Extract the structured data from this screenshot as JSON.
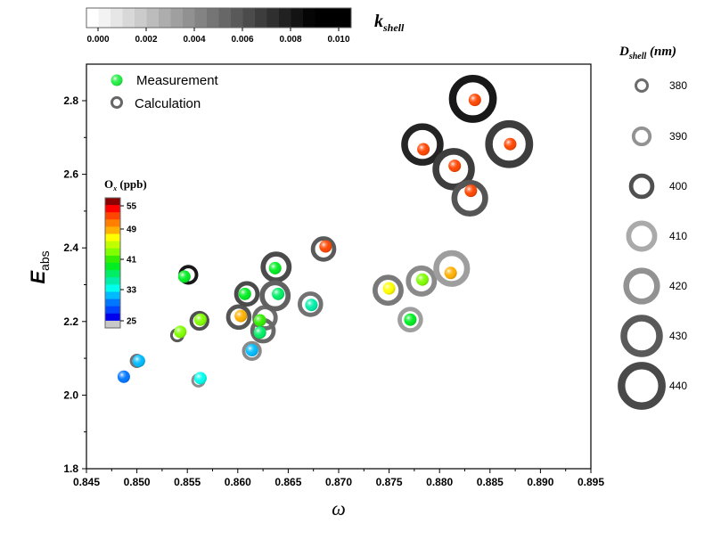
{
  "chart_data": {
    "type": "scatter",
    "title": "",
    "xlabel": "ω",
    "ylabel": "E",
    "ylabel_sub": "abs",
    "xlim": [
      0.845,
      0.895
    ],
    "ylim": [
      1.8,
      2.9
    ],
    "xticks": [
      "0.845",
      "0.850",
      "0.855",
      "0.860",
      "0.865",
      "0.870",
      "0.875",
      "0.880",
      "0.885",
      "0.890",
      "0.895"
    ],
    "yticks": [
      "1.8",
      "2.0",
      "2.2",
      "2.4",
      "2.6",
      "2.8"
    ],
    "grid": false,
    "legend": {
      "placement": "top-left",
      "entries": [
        {
          "label": "Measurement",
          "marker": "filled-sphere",
          "color": "#22ee44"
        },
        {
          "label": "Calculation",
          "marker": "ring",
          "color": "#666666"
        }
      ]
    },
    "kshell_colorbar": {
      "label": "k",
      "label_sub": "shell",
      "range": [
        0.0,
        0.0105
      ],
      "ticks": [
        "0.000",
        "0.002",
        "0.004",
        "0.006",
        "0.008",
        "0.010"
      ],
      "colors": [
        "#ffffff",
        "#f3f3f3",
        "#e6e6e6",
        "#d8d8d8",
        "#cbcbcb",
        "#bcbcbc",
        "#adadad",
        "#9f9f9f",
        "#919191",
        "#838383",
        "#757575",
        "#676767",
        "#595959",
        "#4b4b4b",
        "#3d3d3d",
        "#2f2f2f",
        "#212121",
        "#131313",
        "#050505",
        "#000000",
        "#000000",
        "#000000"
      ]
    },
    "ox_colorbar": {
      "label": "O",
      "label_sub": "x",
      "label_unit": " (ppb)",
      "ticks": [
        "55",
        "49",
        "41",
        "33",
        "25"
      ],
      "tick_values": [
        55,
        49,
        41,
        33,
        25
      ],
      "range": [
        23,
        57
      ],
      "colors_top_to_bottom": [
        "#8b0000",
        "#ff0000",
        "#ff4500",
        "#ff7f00",
        "#ffb000",
        "#ffff00",
        "#bfff00",
        "#80ff00",
        "#33ee00",
        "#00ee22",
        "#00ee66",
        "#00eeaa",
        "#00ffee",
        "#00bbff",
        "#0077ff",
        "#0044ff",
        "#0000ee",
        "#c8c8c8"
      ]
    },
    "dshell_legend": {
      "title": "D",
      "title_sub": "shell",
      "title_unit": " (nm)",
      "sizes": [
        380,
        390,
        400,
        410,
        420,
        430,
        440
      ],
      "kshell": [
        0.006,
        0.0045,
        0.0072,
        0.0035,
        0.0045,
        0.0068,
        0.0075
      ]
    },
    "points": [
      {
        "omega": 0.8487,
        "Eabs": 2.05,
        "ox": 28,
        "calc": null
      },
      {
        "omega": 0.8502,
        "Eabs": 2.093,
        "ox": 31,
        "calc": {
          "omega": 0.85,
          "Eabs": 2.093,
          "dshell": 380,
          "kshell": 0.0058
        }
      },
      {
        "omega": 0.8547,
        "Eabs": 2.322,
        "ox": 38,
        "calc": {
          "omega": 0.8551,
          "Eabs": 2.327,
          "dshell": 390,
          "kshell": 0.0095
        }
      },
      {
        "omega": 0.8543,
        "Eabs": 2.172,
        "ox": 42,
        "calc": {
          "omega": 0.854,
          "Eabs": 2.163,
          "dshell": 380,
          "kshell": 0.0068
        }
      },
      {
        "omega": 0.8563,
        "Eabs": 2.046,
        "ox": 33,
        "calc": {
          "omega": 0.8561,
          "Eabs": 2.04,
          "dshell": 380,
          "kshell": 0.0047
        }
      },
      {
        "omega": 0.8563,
        "Eabs": 2.205,
        "ox": 42,
        "calc": {
          "omega": 0.8562,
          "Eabs": 2.202,
          "dshell": 390,
          "kshell": 0.0072
        }
      },
      {
        "omega": 0.8603,
        "Eabs": 2.215,
        "ox": 49,
        "calc": {
          "omega": 0.8601,
          "Eabs": 2.212,
          "dshell": 400,
          "kshell": 0.007
        }
      },
      {
        "omega": 0.8607,
        "Eabs": 2.275,
        "ox": 39,
        "calc": {
          "omega": 0.8609,
          "Eabs": 2.275,
          "dshell": 400,
          "kshell": 0.0074
        }
      },
      {
        "omega": 0.8614,
        "Eabs": 2.122,
        "ox": 31,
        "calc": {
          "omega": 0.8614,
          "Eabs": 2.12,
          "dshell": 390,
          "kshell": 0.0048
        }
      },
      {
        "omega": 0.8622,
        "Eabs": 2.203,
        "ox": 40,
        "calc": {
          "omega": 0.8627,
          "Eabs": 2.21,
          "dshell": 400,
          "kshell": 0.006
        }
      },
      {
        "omega": 0.8622,
        "Eabs": 2.17,
        "ox": 36,
        "calc": {
          "omega": 0.8625,
          "Eabs": 2.175,
          "dshell": 400,
          "kshell": 0.0062
        }
      },
      {
        "omega": 0.8637,
        "Eabs": 2.345,
        "ox": 39,
        "calc": {
          "omega": 0.8638,
          "Eabs": 2.348,
          "dshell": 410,
          "kshell": 0.0074
        }
      },
      {
        "omega": 0.864,
        "Eabs": 2.275,
        "ox": 37,
        "calc": {
          "omega": 0.8637,
          "Eabs": 2.27,
          "dshell": 410,
          "kshell": 0.0065
        }
      },
      {
        "omega": 0.8673,
        "Eabs": 2.245,
        "ox": 35,
        "calc": {
          "omega": 0.8672,
          "Eabs": 2.247,
          "dshell": 400,
          "kshell": 0.0058
        }
      },
      {
        "omega": 0.8687,
        "Eabs": 2.404,
        "ox": 53,
        "calc": {
          "omega": 0.8685,
          "Eabs": 2.397,
          "dshell": 400,
          "kshell": 0.0068
        }
      },
      {
        "omega": 0.875,
        "Eabs": 2.29,
        "ox": 46,
        "calc": {
          "omega": 0.8749,
          "Eabs": 2.285,
          "dshell": 410,
          "kshell": 0.0055
        }
      },
      {
        "omega": 0.8771,
        "Eabs": 2.205,
        "ox": 38,
        "calc": {
          "omega": 0.8771,
          "Eabs": 2.205,
          "dshell": 400,
          "kshell": 0.004
        }
      },
      {
        "omega": 0.8783,
        "Eabs": 2.314,
        "ox": 42,
        "calc": {
          "omega": 0.8782,
          "Eabs": 2.31,
          "dshell": 410,
          "kshell": 0.0048
        }
      },
      {
        "omega": 0.8811,
        "Eabs": 2.332,
        "ox": 49,
        "calc": {
          "omega": 0.8812,
          "Eabs": 2.344,
          "dshell": 420,
          "kshell": 0.004
        }
      },
      {
        "omega": 0.8784,
        "Eabs": 2.668,
        "ox": 53,
        "calc": {
          "omega": 0.8783,
          "Eabs": 2.681,
          "dshell": 430,
          "kshell": 0.009
        }
      },
      {
        "omega": 0.8815,
        "Eabs": 2.623,
        "ox": 53,
        "calc": {
          "omega": 0.8814,
          "Eabs": 2.614,
          "dshell": 430,
          "kshell": 0.008
        }
      },
      {
        "omega": 0.8831,
        "Eabs": 2.555,
        "ox": 53,
        "calc": {
          "omega": 0.883,
          "Eabs": 2.535,
          "dshell": 420,
          "kshell": 0.007
        }
      },
      {
        "omega": 0.8835,
        "Eabs": 2.802,
        "ox": 53,
        "calc": {
          "omega": 0.8833,
          "Eabs": 2.805,
          "dshell": 440,
          "kshell": 0.0095
        }
      },
      {
        "omega": 0.887,
        "Eabs": 2.682,
        "ox": 53,
        "calc": {
          "omega": 0.8869,
          "Eabs": 2.682,
          "dshell": 440,
          "kshell": 0.008
        }
      }
    ]
  }
}
